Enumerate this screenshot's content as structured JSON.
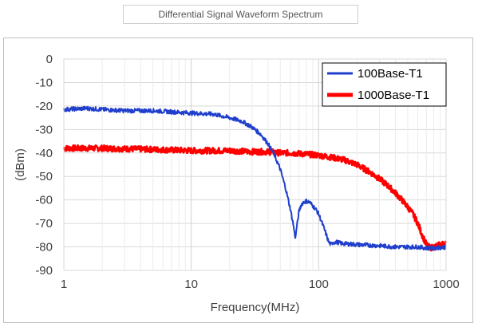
{
  "header": {
    "caption": "Differential Signal Waveform Spectrum"
  },
  "chart_data": {
    "type": "line",
    "title": "",
    "xlabel": "Frequency(MHz)",
    "ylabel": "(dBm)",
    "xscale": "log",
    "xlim": [
      1,
      1000
    ],
    "ylim": [
      -90,
      0
    ],
    "xticks": [
      1,
      10,
      100,
      1000
    ],
    "xtick_labels": [
      "1",
      "10",
      "100",
      "1000"
    ],
    "yticks": [
      0,
      -10,
      -20,
      -30,
      -40,
      -50,
      -60,
      -70,
      -80,
      -90
    ],
    "ytick_labels": [
      "0",
      "-10",
      "-20",
      "-30",
      "-40",
      "-50",
      "-60",
      "-70",
      "-80",
      "-90"
    ],
    "grid": {
      "x": true,
      "y": true
    },
    "legend": {
      "position": "top-right",
      "bordered": true
    },
    "series": [
      {
        "name": "100Base-T1",
        "color": "#1f3fcc",
        "x": [
          1,
          1.5,
          2,
          3,
          5,
          7,
          10,
          15,
          20,
          25,
          30,
          35,
          40,
          45,
          50,
          55,
          60,
          63,
          65,
          66,
          67,
          68,
          70,
          73,
          76,
          80,
          85,
          90,
          95,
          100,
          105,
          110,
          115,
          120,
          125,
          130,
          140,
          150,
          200,
          300,
          400,
          500,
          600,
          700,
          800,
          1000
        ],
        "y": [
          -21.5,
          -21,
          -21.5,
          -22,
          -22,
          -22.5,
          -23,
          -23.5,
          -25,
          -26.5,
          -29,
          -32,
          -36,
          -41,
          -47,
          -55,
          -64,
          -70,
          -75,
          -76,
          -72,
          -70,
          -65,
          -62,
          -61,
          -60.5,
          -61,
          -62.5,
          -64,
          -66,
          -69,
          -72,
          -75,
          -78,
          -79,
          -78,
          -78,
          -78.5,
          -79,
          -79.5,
          -80,
          -80,
          -80,
          -80.5,
          -80.5,
          -80
        ]
      },
      {
        "name": "1000Base-T1",
        "color": "#ff0000",
        "x": [
          1,
          2,
          5,
          10,
          20,
          30,
          40,
          50,
          60,
          80,
          100,
          130,
          160,
          200,
          250,
          300,
          350,
          400,
          450,
          500,
          550,
          600,
          650,
          700,
          750,
          800,
          900,
          1000
        ],
        "y": [
          -38,
          -38,
          -38.5,
          -39,
          -39,
          -39.5,
          -39.5,
          -40,
          -40,
          -40.5,
          -41,
          -42,
          -43,
          -45,
          -48,
          -51,
          -54,
          -57,
          -60,
          -63,
          -66,
          -70,
          -75,
          -79,
          -80.5,
          -80,
          -79,
          -78.5
        ]
      }
    ]
  }
}
